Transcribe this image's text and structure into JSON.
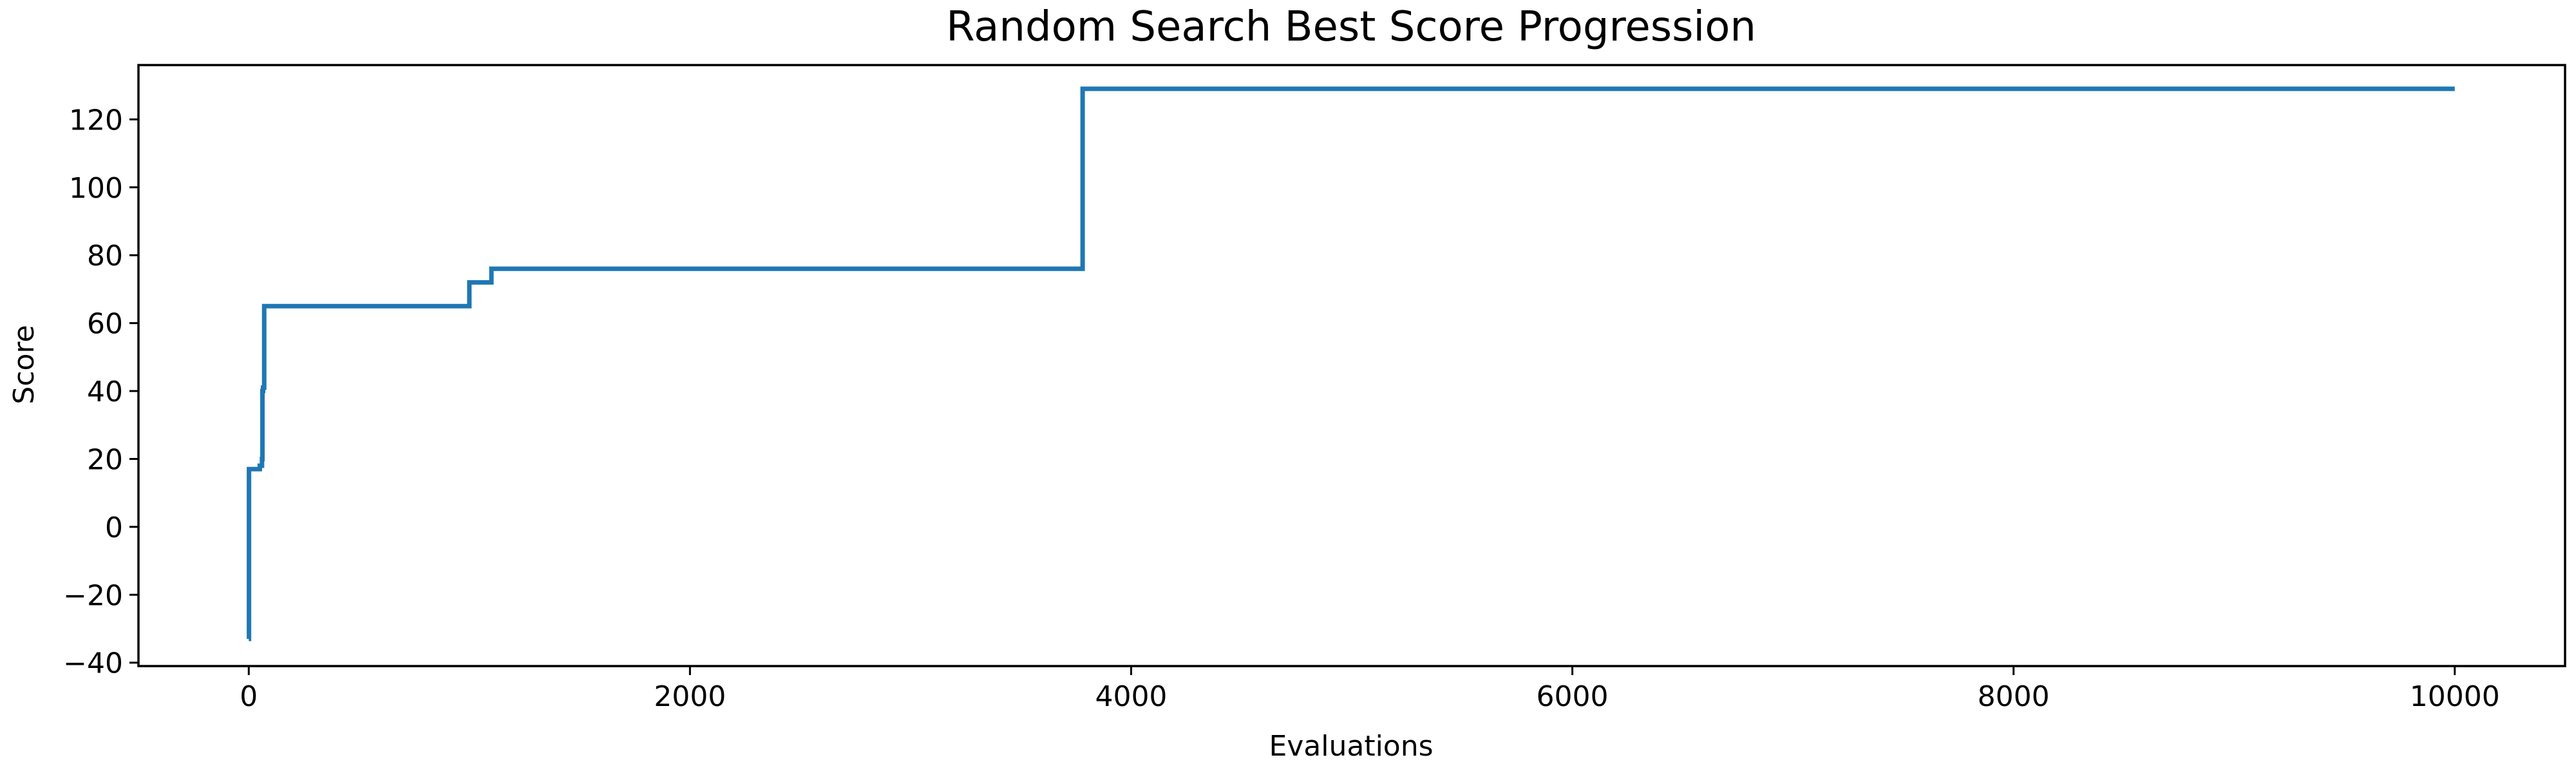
{
  "chart_data": {
    "type": "line",
    "title": "Random Search Best Score Progression",
    "xlabel": "Evaluations",
    "ylabel": "Score",
    "xlim": [
      -500,
      10500
    ],
    "ylim": [
      -41,
      136
    ],
    "x_ticks": [
      0,
      2000,
      4000,
      6000,
      8000,
      10000
    ],
    "y_ticks": [
      -40,
      -20,
      0,
      20,
      40,
      60,
      80,
      100,
      120
    ],
    "x_tick_labels": [
      "0",
      "2000",
      "4000",
      "6000",
      "8000",
      "10000"
    ],
    "y_tick_labels": [
      "−40",
      "−20",
      "0",
      "20",
      "40",
      "60",
      "80",
      "100",
      "120"
    ],
    "grid": false,
    "color": "#1f77b4",
    "step": "post",
    "x": [
      0,
      1,
      50,
      60,
      62,
      65,
      70,
      1000,
      1100,
      3780,
      10000
    ],
    "y": [
      -33,
      17,
      18,
      20,
      40,
      41,
      65,
      72,
      76,
      129,
      129
    ]
  }
}
